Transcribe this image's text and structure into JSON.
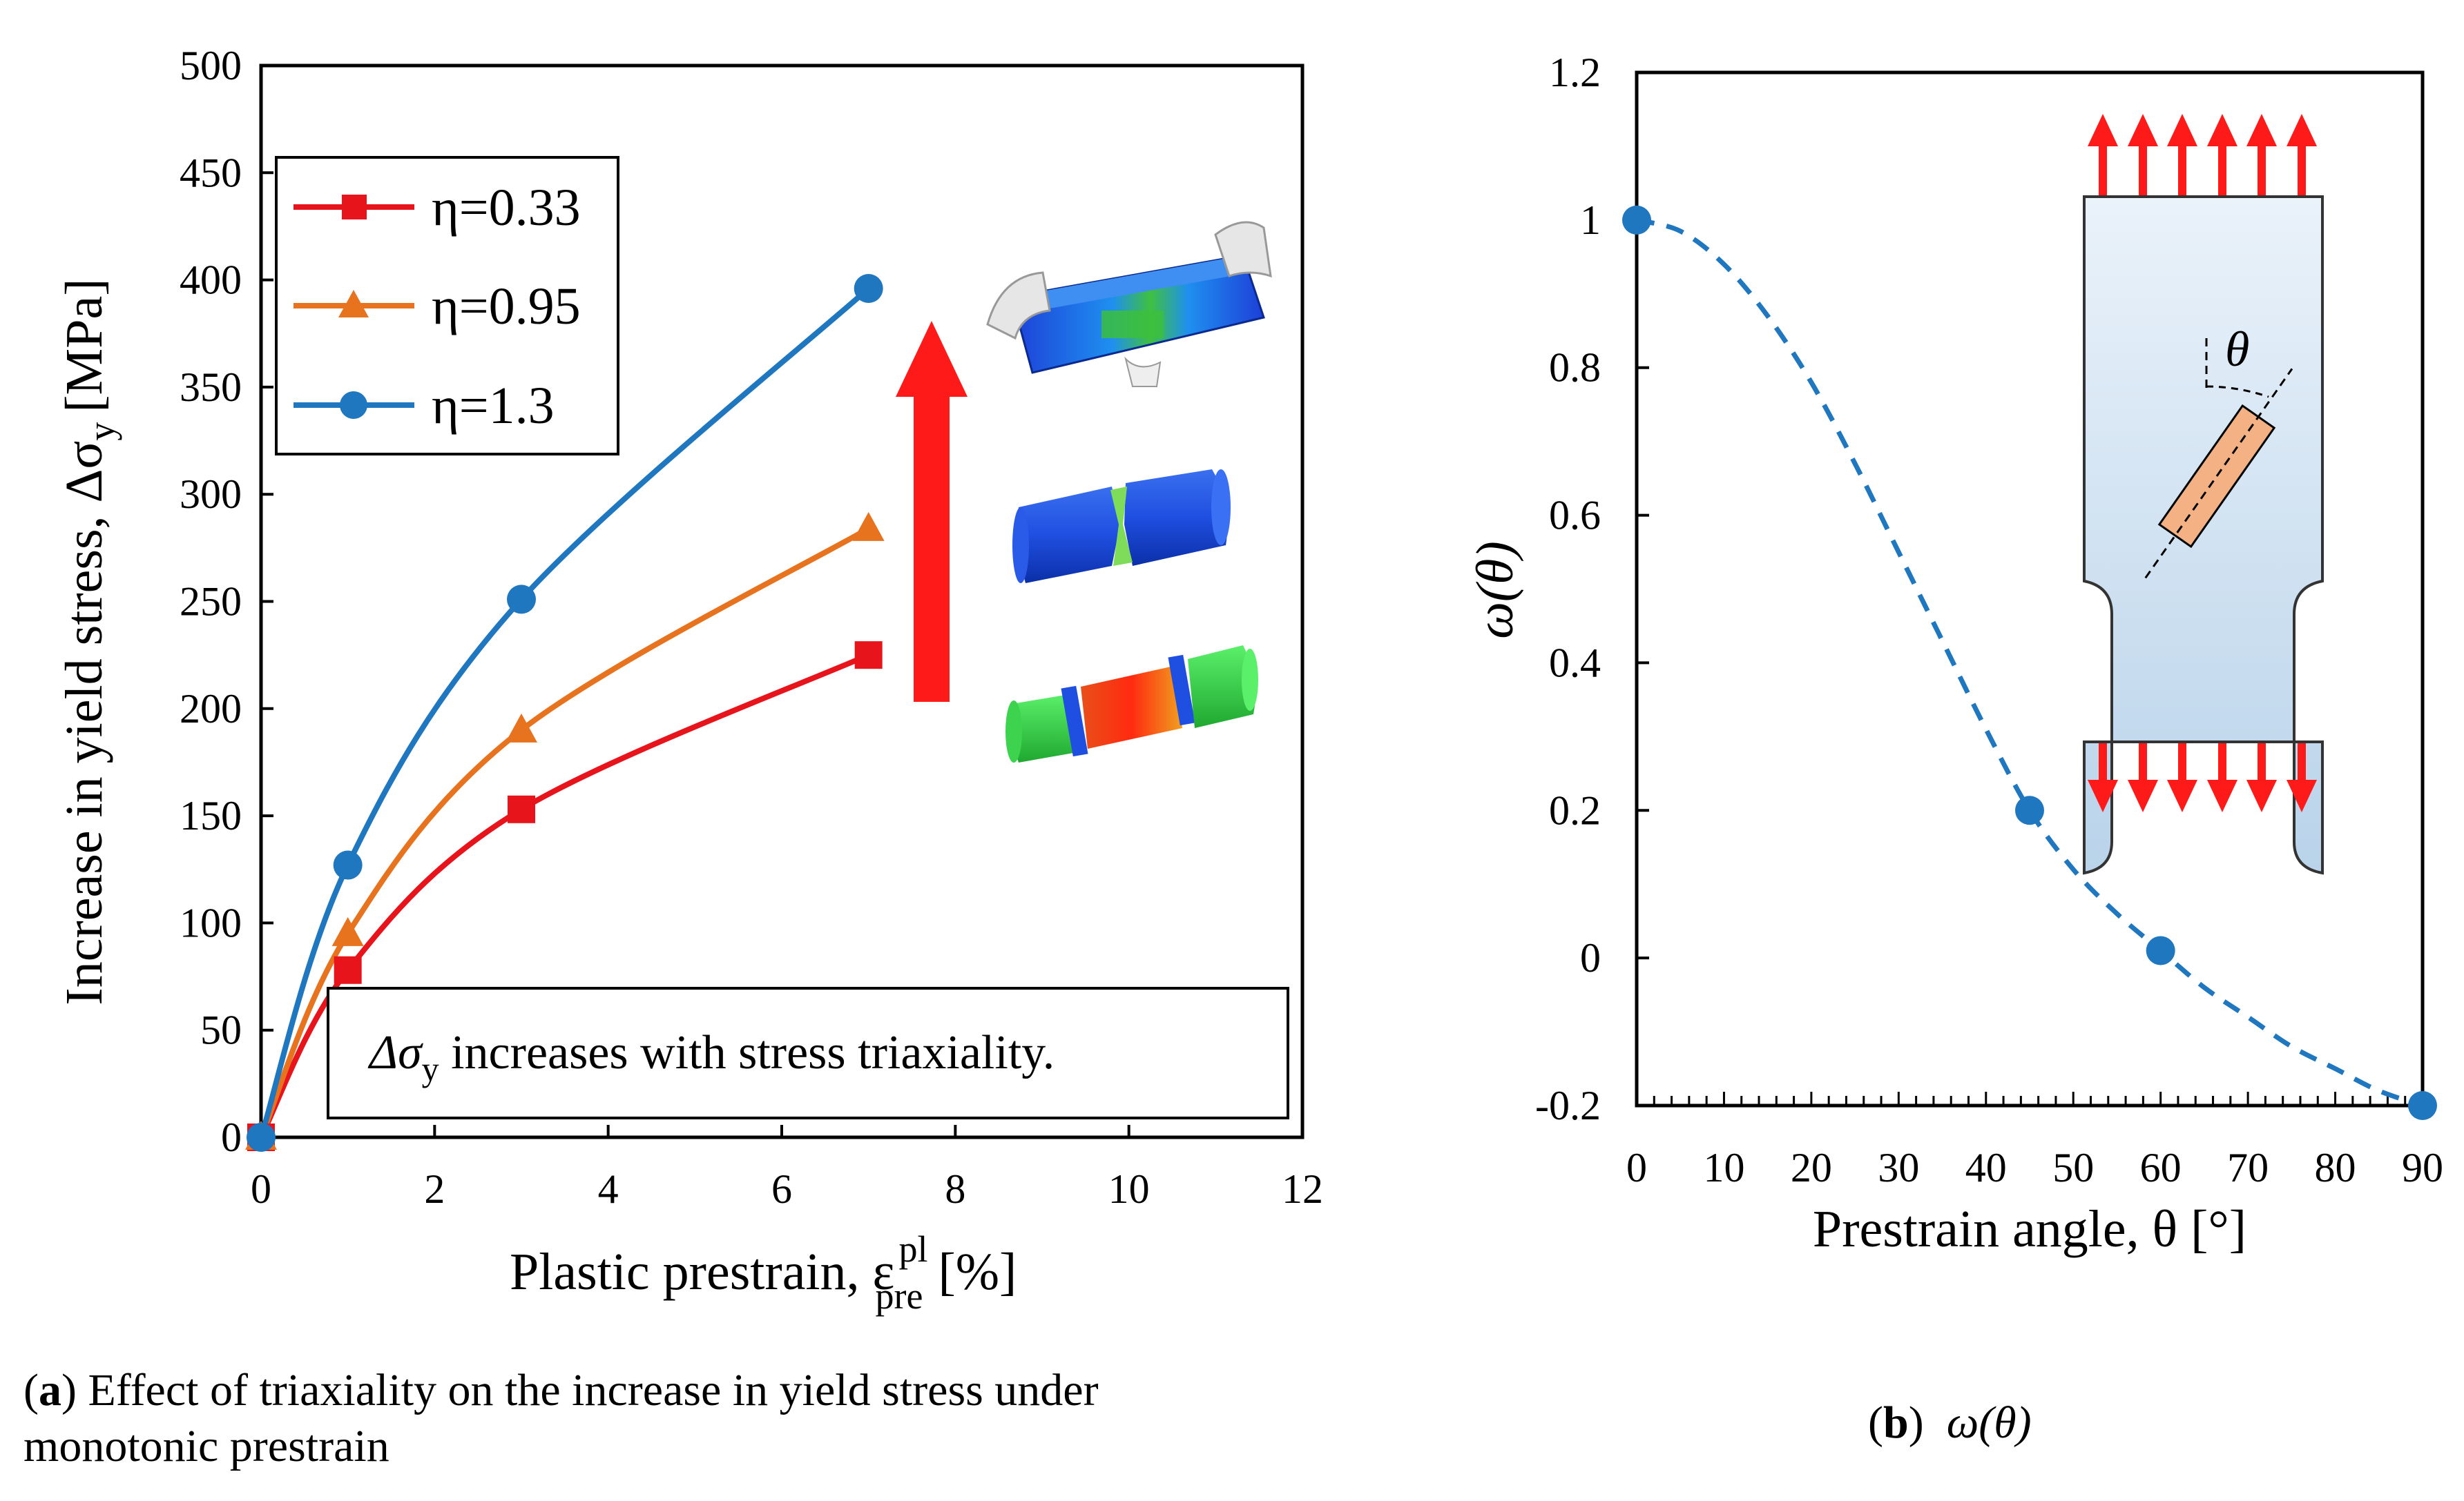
{
  "chart_data": [
    {
      "id": "a",
      "type": "line",
      "xlabel": "Plastic prestrain, ε",
      "xlabel_sup": "pl",
      "xlabel_sub": "pre",
      "xlabel_unit": "[%]",
      "ylabel": "Increase in yield stress, Δσ",
      "ylabel_sub": "y",
      "ylabel_unit": "[MPa]",
      "xlim": [
        0,
        12
      ],
      "ylim": [
        0,
        500
      ],
      "xticks": [
        0,
        2,
        4,
        6,
        8,
        10,
        12
      ],
      "yticks": [
        0,
        50,
        100,
        150,
        200,
        250,
        300,
        350,
        400,
        450,
        500
      ],
      "legend_position": "top-left",
      "series": [
        {
          "name": "η=0.33",
          "color": "#e8141b",
          "marker": "square",
          "x": [
            0,
            1,
            3,
            7
          ],
          "y": [
            0,
            78,
            153,
            225
          ]
        },
        {
          "name": "η=0.95",
          "color": "#e8731f",
          "marker": "triangle",
          "x": [
            0,
            1,
            3,
            7
          ],
          "y": [
            0,
            95,
            190,
            284
          ]
        },
        {
          "name": "η=1.3",
          "color": "#1f77bf",
          "marker": "circle",
          "x": [
            0,
            1,
            3,
            7
          ],
          "y": [
            0,
            127,
            251,
            396
          ]
        }
      ],
      "annotation": {
        "prefix": "Δσ",
        "sub": "y",
        "text": " increases with stress triaxiality."
      }
    },
    {
      "id": "b",
      "type": "scatter",
      "xlabel": "Prestrain angle, θ [°]",
      "ylabel": "ω(θ)",
      "xlim": [
        0,
        90
      ],
      "ylim": [
        -0.2,
        1.2
      ],
      "xticks": [
        0,
        10,
        20,
        30,
        40,
        50,
        60,
        70,
        80,
        90
      ],
      "yticks": [
        -0.2,
        0,
        0.2,
        0.4,
        0.6,
        0.8,
        1,
        1.2
      ],
      "ytick_labels": [
        "-0.2",
        "0",
        "0.2",
        "0.4",
        "0.6",
        "0.8",
        "1",
        "1.2"
      ],
      "points": {
        "color": "#1f77bf",
        "x": [
          0,
          45,
          60,
          90
        ],
        "y": [
          1.0,
          0.2,
          0.01,
          -0.2
        ]
      },
      "fit_curve": {
        "style": "dashed",
        "color": "#1f77bf",
        "x": [
          0,
          5,
          10,
          15,
          20,
          25,
          30,
          35,
          40,
          45,
          50,
          55,
          60,
          65,
          70,
          75,
          80,
          85,
          90
        ],
        "y": [
          1.0,
          0.985,
          0.94,
          0.87,
          0.78,
          0.67,
          0.55,
          0.43,
          0.31,
          0.2,
          0.12,
          0.06,
          0.01,
          -0.04,
          -0.08,
          -0.12,
          -0.15,
          -0.18,
          -0.2
        ]
      },
      "inset_label": "θ"
    }
  ],
  "colors": {
    "arrow_red": "#ff1a1a",
    "specimen_fill_top": "#eaf2fa",
    "specimen_fill_bottom": "#b9d3ea",
    "element_fill": "#f4b183"
  },
  "captions": {
    "a_bold": "a",
    "a_text": ") Effect of triaxiality on the increase in yield stress under",
    "a_text2": "monotonic prestrain",
    "b_bold": "b",
    "b_text": "ω(θ)"
  }
}
